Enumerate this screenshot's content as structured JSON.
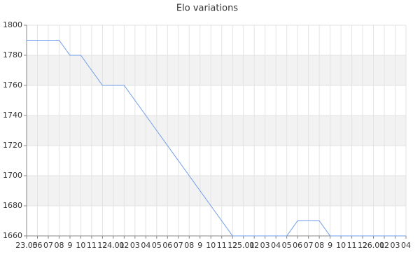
{
  "chart_data": {
    "type": "line",
    "title": "Elo variations",
    "categories": [
      "23.05",
      "06",
      "07",
      "08",
      "9",
      "10",
      "11",
      "12",
      "24.01",
      "02",
      "03",
      "04",
      "05",
      "06",
      "07",
      "08",
      "9",
      "10",
      "11",
      "12",
      "25.01",
      "02",
      "03",
      "04",
      "05",
      "06",
      "07",
      "08",
      "9",
      "10",
      "11",
      "12",
      "26.01",
      "02",
      "03",
      "04"
    ],
    "series": [
      {
        "name": "Elo",
        "color": "#6f9be8",
        "values": [
          1790,
          1790,
          1790,
          1790,
          1780,
          1780,
          1770,
          1760,
          1760,
          1760,
          1750,
          1740,
          1730,
          1720,
          1710,
          1700,
          1690,
          1680,
          1670,
          1660,
          1660,
          1660,
          1660,
          1660,
          1660,
          1670,
          1670,
          1670,
          1660,
          1660,
          1660,
          1660,
          1660,
          1660,
          1660,
          1660
        ]
      }
    ],
    "ylim": [
      1660,
      1800
    ],
    "yticks": [
      1660,
      1680,
      1700,
      1720,
      1740,
      1760,
      1780,
      1800
    ],
    "grid": true,
    "alternate_bands": true,
    "legend": false
  }
}
